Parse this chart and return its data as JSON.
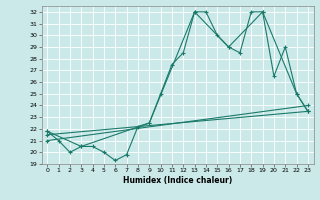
{
  "xlabel": "Humidex (Indice chaleur)",
  "xlim": [
    -0.5,
    23.5
  ],
  "ylim": [
    19,
    32.5
  ],
  "yticks": [
    19,
    20,
    21,
    22,
    23,
    24,
    25,
    26,
    27,
    28,
    29,
    30,
    31,
    32
  ],
  "xticks": [
    0,
    1,
    2,
    3,
    4,
    5,
    6,
    7,
    8,
    9,
    10,
    11,
    12,
    13,
    14,
    15,
    16,
    17,
    18,
    19,
    20,
    21,
    22,
    23
  ],
  "bg_color": "#cce9e9",
  "line_color": "#1a7a6a",
  "lines": [
    {
      "x": [
        0,
        1,
        2,
        3,
        4,
        5,
        6,
        7,
        8,
        9,
        10,
        11,
        12,
        13,
        14,
        15,
        16,
        17,
        18,
        19,
        20,
        21,
        22,
        23
      ],
      "y": [
        21.8,
        21.0,
        20.0,
        20.5,
        20.5,
        20.0,
        19.3,
        19.8,
        22.2,
        22.5,
        25.0,
        27.5,
        28.5,
        32.0,
        32.0,
        30.0,
        29.0,
        28.5,
        32.0,
        32.0,
        26.5,
        29.0,
        25.0,
        23.5
      ]
    },
    {
      "x": [
        0,
        3,
        9,
        13,
        16,
        19,
        22,
        23
      ],
      "y": [
        21.8,
        20.5,
        22.5,
        32.0,
        29.0,
        32.0,
        25.0,
        23.5
      ]
    },
    {
      "x": [
        0,
        23
      ],
      "y": [
        21.5,
        23.5
      ]
    },
    {
      "x": [
        0,
        23
      ],
      "y": [
        21.0,
        24.0
      ]
    }
  ]
}
